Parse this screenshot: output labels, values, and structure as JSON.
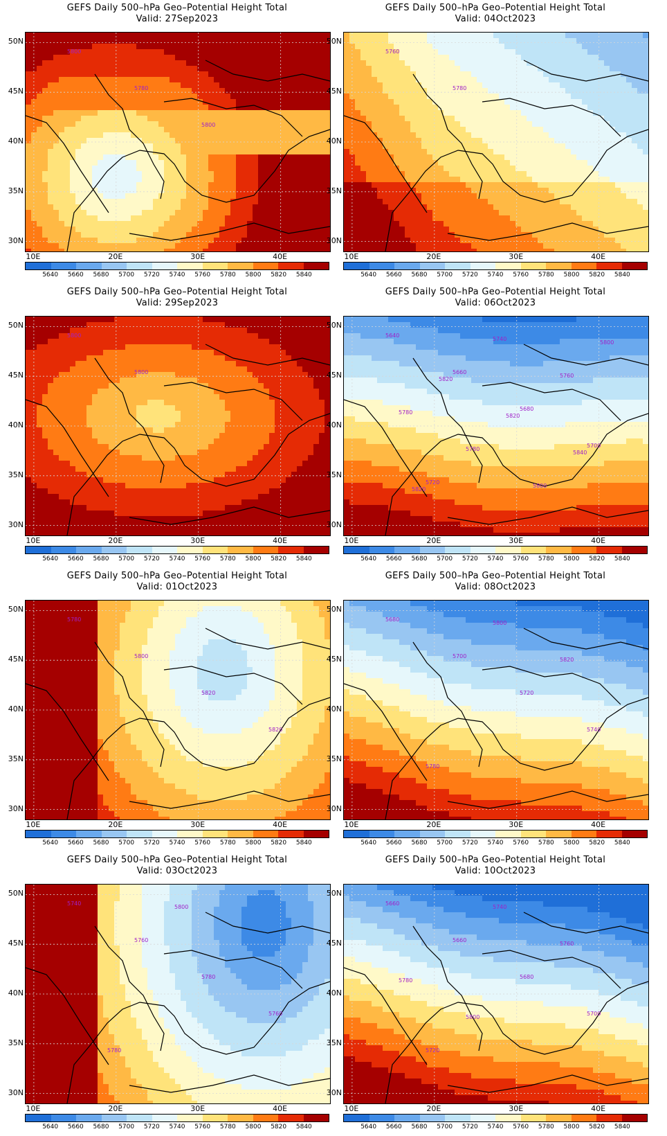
{
  "panels": [
    {
      "title": "GEFS Daily 500–hPa Geo–Potential Height Total",
      "valid": "Valid: 27Sep2023",
      "pattern": "cutoff-low-center"
    },
    {
      "title": "GEFS Daily 500–hPa Geo–Potential Height Total",
      "valid": "Valid: 04Oct2023",
      "pattern": "trough-northeast"
    },
    {
      "title": "GEFS Daily 500–hPa Geo–Potential Height Total",
      "valid": "Valid: 29Sep2023",
      "pattern": "ridge-oval"
    },
    {
      "title": "GEFS Daily 500–hPa Geo–Potential Height Total",
      "valid": "Valid: 06Oct2023",
      "pattern": "zonal-gradient"
    },
    {
      "title": "GEFS Daily 500–hPa Geo–Potential Height Total",
      "valid": "Valid: 01Oct2023",
      "pattern": "trough-east"
    },
    {
      "title": "GEFS Daily 500–hPa Geo–Potential Height Total",
      "valid": "Valid: 08Oct2023",
      "pattern": "zonal-gradient-strong"
    },
    {
      "title": "GEFS Daily 500–hPa Geo–Potential Height Total",
      "valid": "Valid: 03Oct2023",
      "pattern": "trough-east-deep"
    },
    {
      "title": "GEFS Daily 500–hPa Geo–Potential Height Total",
      "valid": "Valid: 10Oct2023",
      "pattern": "zonal-gradient-deep"
    }
  ],
  "lat_labels": [
    "50N",
    "45N",
    "40N",
    "35N",
    "30N"
  ],
  "lon_labels": [
    "10E",
    "20E",
    "30E",
    "40E"
  ],
  "colorbar": {
    "labels": [
      "5640",
      "5660",
      "5680",
      "5700",
      "5720",
      "5740",
      "5760",
      "5780",
      "5800",
      "5820",
      "5840"
    ],
    "colors": [
      "#1f6fd8",
      "#3d8ae6",
      "#6aa9ee",
      "#98c6f2",
      "#bfe4f7",
      "#e6f7fb",
      "#fff9c8",
      "#ffe37a",
      "#ffb944",
      "#ff7b14",
      "#e52b05",
      "#a50000"
    ]
  },
  "contour_labels": {
    "p0": [
      "5800",
      "5780",
      "5800"
    ],
    "p1": [
      "5760",
      "5780"
    ],
    "p2": [
      "5800",
      "5800"
    ],
    "p3": [
      "5640",
      "5660",
      "5680",
      "5700",
      "5720",
      "5740",
      "5760",
      "5780",
      "5780",
      "5800",
      "5800",
      "5820",
      "5820",
      "5840",
      "5820"
    ],
    "p4": [
      "5780",
      "5800",
      "5820",
      "5820"
    ],
    "p5": [
      "5680",
      "5700",
      "5720",
      "5740",
      "5780",
      "5800",
      "5820"
    ],
    "p6": [
      "5740",
      "5760",
      "5780",
      "5760",
      "5780",
      "5800"
    ],
    "p7": [
      "5660",
      "5660",
      "5680",
      "5700",
      "5720",
      "5740",
      "5760",
      "5780",
      "5800"
    ]
  },
  "contour_color": "#a020c8",
  "grid_line_color": "#d8d8d8"
}
